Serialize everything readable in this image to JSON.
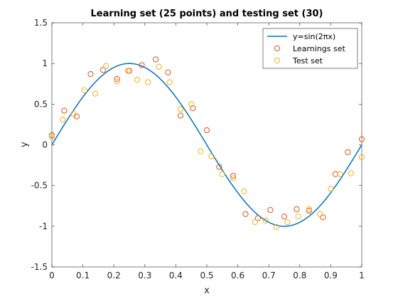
{
  "chart_data": {
    "type": "scatter",
    "title": "Learning set (25 points) and testing set (30)",
    "xlabel": "x",
    "ylabel": "y",
    "xlim": [
      0,
      1
    ],
    "ylim": [
      -1.5,
      1.5
    ],
    "xticks": [
      "0",
      "0.1",
      "0.2",
      "0.3",
      "0.4",
      "0.5",
      "0.6",
      "0.7",
      "0.8",
      "0.9",
      "1"
    ],
    "xtick_values": [
      0,
      0.1,
      0.2,
      0.3,
      0.4,
      0.5,
      0.6,
      0.7,
      0.8,
      0.9,
      1
    ],
    "yticks": [
      "-1.5",
      "-1",
      "-0.5",
      "0",
      "0.5",
      "1",
      "1.5"
    ],
    "ytick_values": [
      -1.5,
      -1,
      -0.5,
      0,
      0.5,
      1,
      1.5
    ],
    "grid": false,
    "legend_position": "top-right",
    "series": [
      {
        "name": "y=sin(2πx)",
        "kind": "line",
        "color": "#0072BD",
        "function": "sin(2*pi*x)"
      },
      {
        "name": "Learnings set",
        "kind": "marker",
        "color": "#D95319",
        "points": [
          [
            0.0,
            0.12
          ],
          [
            0.04,
            0.42
          ],
          [
            0.08,
            0.35
          ],
          [
            0.125,
            0.87
          ],
          [
            0.165,
            0.92
          ],
          [
            0.21,
            0.81
          ],
          [
            0.25,
            0.91
          ],
          [
            0.29,
            0.98
          ],
          [
            0.335,
            1.05
          ],
          [
            0.375,
            0.89
          ],
          [
            0.415,
            0.36
          ],
          [
            0.455,
            0.45
          ],
          [
            0.5,
            0.18
          ],
          [
            0.54,
            -0.27
          ],
          [
            0.585,
            -0.38
          ],
          [
            0.625,
            -0.85
          ],
          [
            0.665,
            -0.9
          ],
          [
            0.705,
            -0.8
          ],
          [
            0.75,
            -0.88
          ],
          [
            0.79,
            -0.79
          ],
          [
            0.83,
            -0.81
          ],
          [
            0.875,
            -0.89
          ],
          [
            0.915,
            -0.36
          ],
          [
            0.955,
            -0.09
          ],
          [
            1.0,
            0.07
          ]
        ]
      },
      {
        "name": "Test set",
        "kind": "marker",
        "color": "#EDB120",
        "points": [
          [
            0.0,
            0.1
          ],
          [
            0.035,
            0.31
          ],
          [
            0.07,
            0.38
          ],
          [
            0.105,
            0.67
          ],
          [
            0.14,
            0.63
          ],
          [
            0.175,
            0.97
          ],
          [
            0.21,
            0.78
          ],
          [
            0.245,
            0.91
          ],
          [
            0.275,
            0.8
          ],
          [
            0.31,
            0.77
          ],
          [
            0.345,
            0.96
          ],
          [
            0.38,
            0.77
          ],
          [
            0.415,
            0.44
          ],
          [
            0.45,
            0.5
          ],
          [
            0.48,
            -0.08
          ],
          [
            0.515,
            -0.14
          ],
          [
            0.55,
            -0.36
          ],
          [
            0.585,
            -0.41
          ],
          [
            0.62,
            -0.57
          ],
          [
            0.655,
            -0.95
          ],
          [
            0.69,
            -0.93
          ],
          [
            0.725,
            -1.01
          ],
          [
            0.76,
            -0.95
          ],
          [
            0.795,
            -0.88
          ],
          [
            0.83,
            -0.79
          ],
          [
            0.865,
            -0.85
          ],
          [
            0.9,
            -0.54
          ],
          [
            0.93,
            -0.36
          ],
          [
            0.965,
            -0.35
          ],
          [
            1.0,
            -0.15
          ]
        ]
      }
    ]
  }
}
